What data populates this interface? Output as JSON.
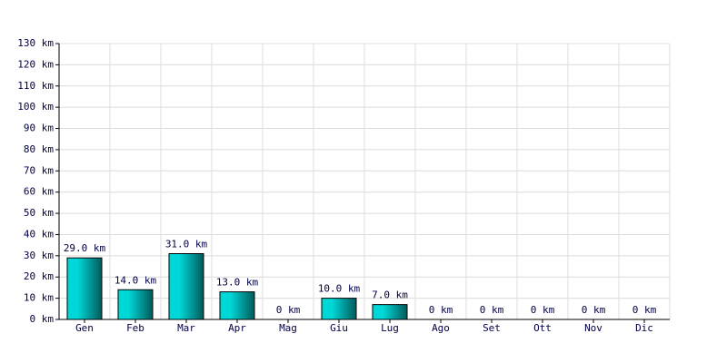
{
  "chart_data": {
    "type": "bar",
    "categories": [
      "Gen",
      "Feb",
      "Mar",
      "Apr",
      "Mag",
      "Giu",
      "Lug",
      "Ago",
      "Set",
      "Ott",
      "Nov",
      "Dic"
    ],
    "values": [
      29,
      14,
      31,
      13,
      0,
      10,
      7,
      0,
      0,
      0,
      0,
      0
    ],
    "value_labels": [
      "29.0 km",
      "14.0 km",
      "31.0 km",
      "13.0 km",
      "0 km",
      "10.0 km",
      "7.0 km",
      "0 km",
      "0 km",
      "0 km",
      "0 km",
      "0 km"
    ],
    "color": "#00d8d8",
    "ylim": [
      0,
      130
    ],
    "yticks": [
      {
        "value": 0,
        "label": "0 km"
      },
      {
        "value": 10,
        "label": "10 km"
      },
      {
        "value": 20,
        "label": "20 km"
      },
      {
        "value": 30,
        "label": "30 km"
      },
      {
        "value": 40,
        "label": "40 km"
      },
      {
        "value": 50,
        "label": "50 km"
      },
      {
        "value": 60,
        "label": "60 km"
      },
      {
        "value": 70,
        "label": "70 km"
      },
      {
        "value": 80,
        "label": "80 km"
      },
      {
        "value": 90,
        "label": "90 km"
      },
      {
        "value": 100,
        "label": "100 km"
      },
      {
        "value": 110,
        "label": "110 km"
      },
      {
        "value": 120,
        "label": "120 km"
      },
      {
        "value": 130,
        "label": "130 km"
      }
    ],
    "grid": true
  }
}
